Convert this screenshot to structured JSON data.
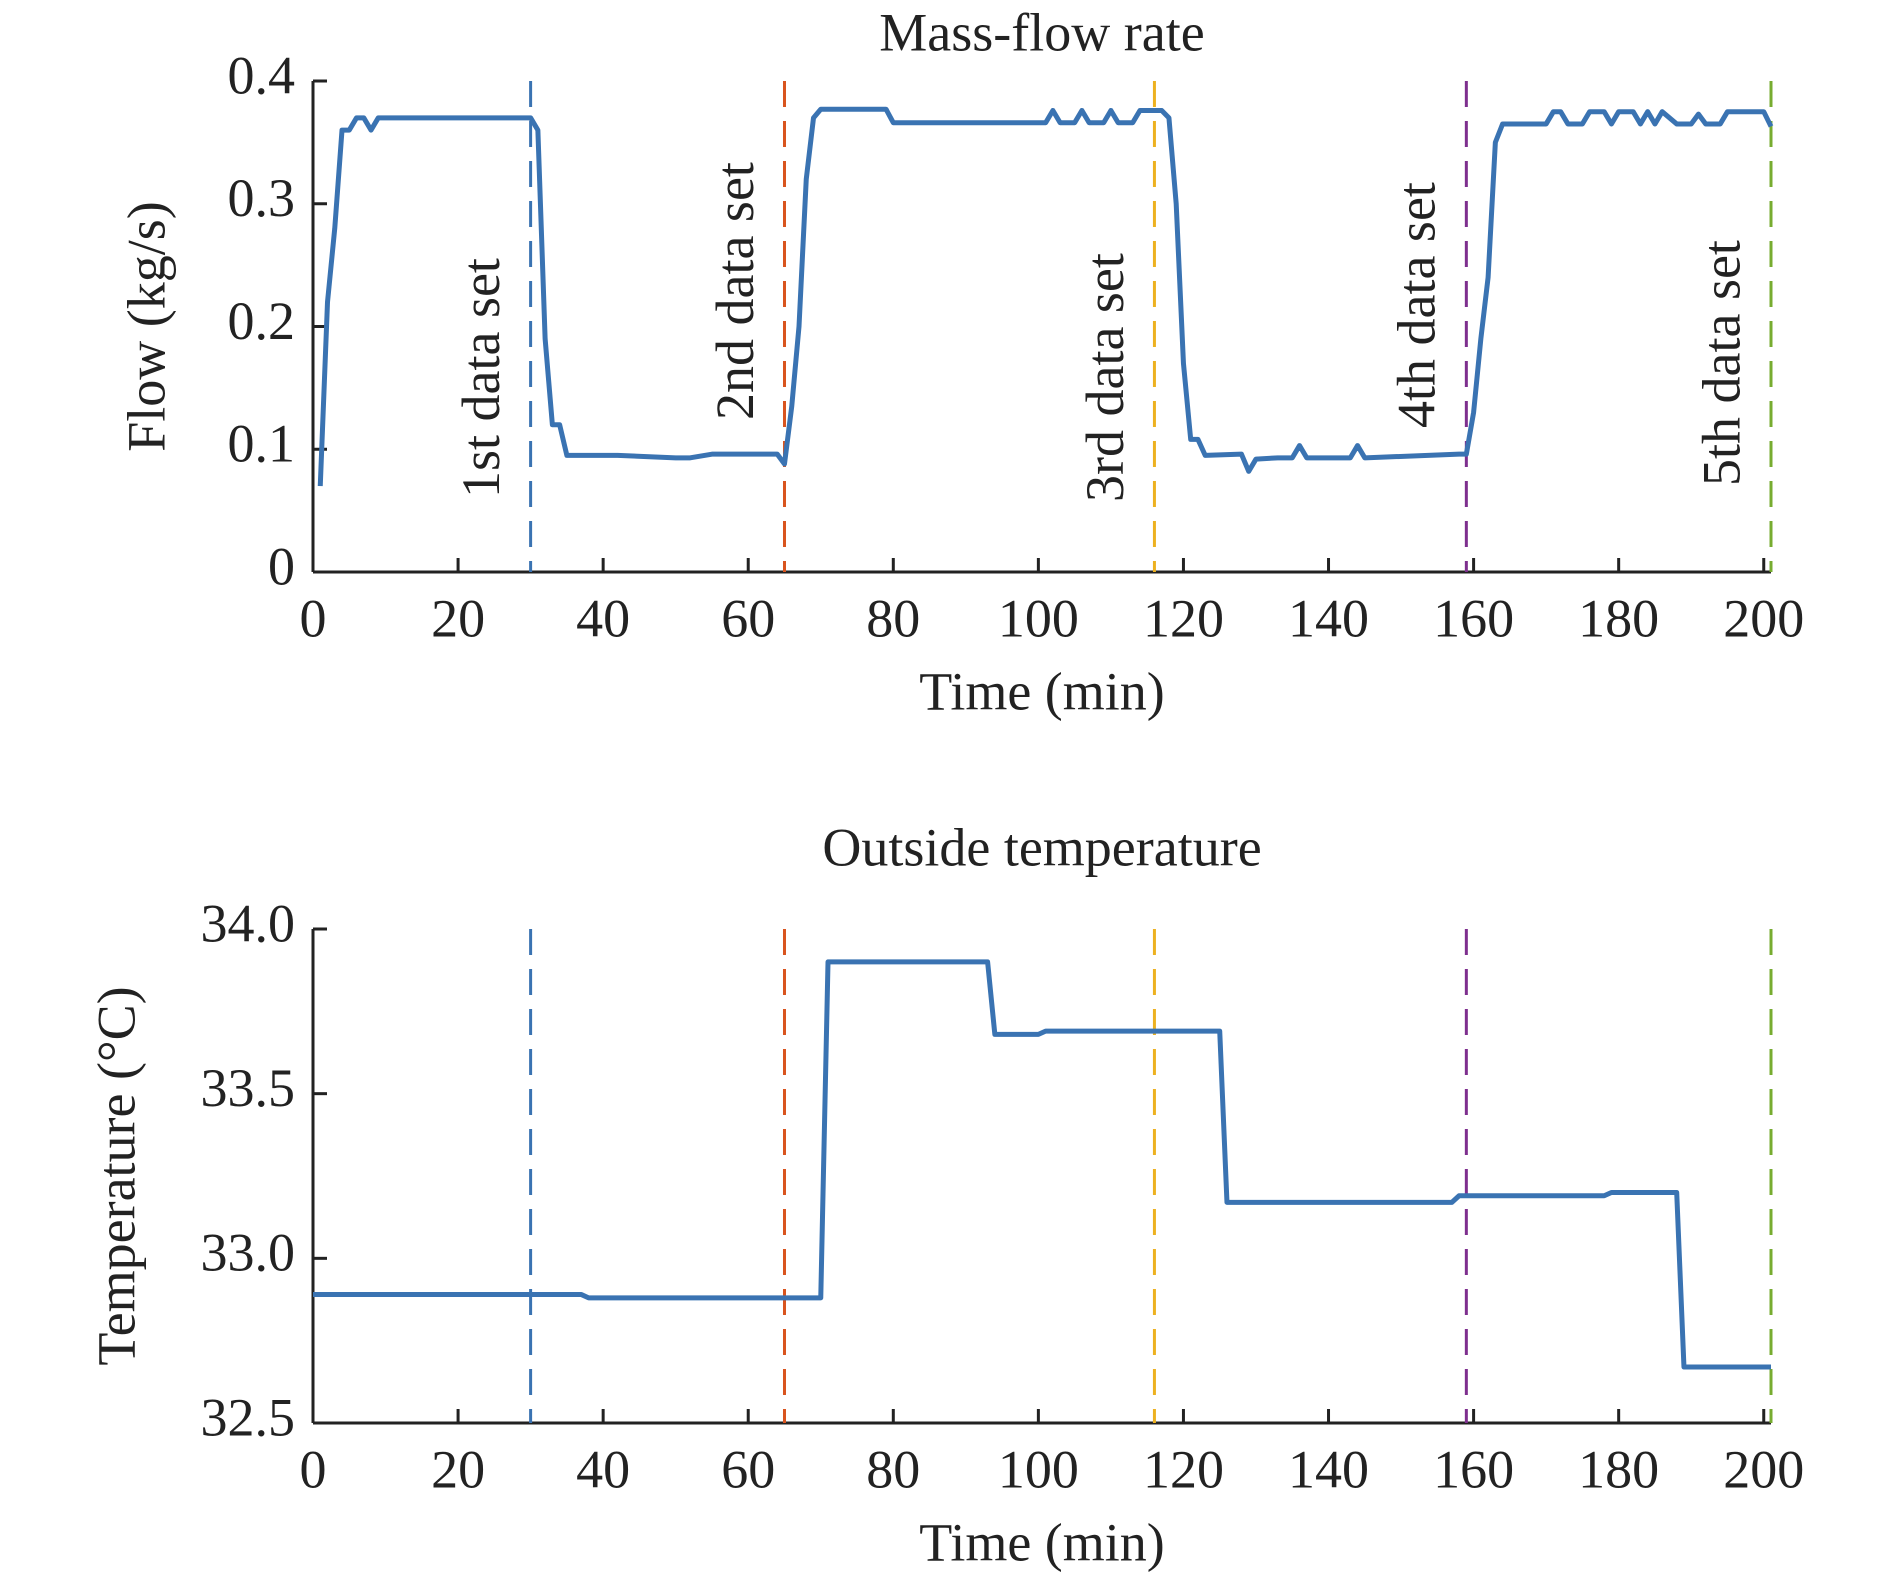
{
  "chart_data": [
    {
      "type": "line",
      "title": "Mass-flow rate",
      "xlabel": "Time (min)",
      "ylabel": "Flow (kg/s)",
      "xlim": [
        0,
        201
      ],
      "xticks": [
        0,
        20,
        40,
        60,
        80,
        100,
        120,
        140,
        160,
        180,
        200
      ],
      "ylim": [
        0,
        0.4
      ],
      "yticks": [
        0,
        0.1,
        0.2,
        0.3,
        0.4
      ],
      "x": [
        1,
        2,
        3,
        4,
        5,
        6,
        7,
        8,
        9,
        30,
        31,
        32,
        33,
        34,
        35,
        42,
        50,
        52,
        55,
        64,
        65,
        66,
        67,
        68,
        69,
        70,
        79,
        80,
        100,
        101,
        102,
        103,
        105,
        106,
        107,
        109,
        110,
        111,
        113,
        114,
        117,
        118,
        119,
        120,
        121,
        122,
        123,
        128,
        129,
        130,
        133,
        135,
        136,
        137,
        143,
        144,
        145,
        158,
        159,
        160,
        161,
        162,
        163,
        164,
        170,
        171,
        172,
        173,
        175,
        176,
        178,
        179,
        180,
        182,
        183,
        184,
        185,
        186,
        188,
        190,
        191,
        192,
        194,
        195,
        200,
        201
      ],
      "series": [
        {
          "color": "#3a73b2",
          "values": [
            0.07,
            0.22,
            0.28,
            0.36,
            0.36,
            0.37,
            0.37,
            0.36,
            0.37,
            0.37,
            0.36,
            0.19,
            0.12,
            0.12,
            0.095,
            0.095,
            0.093,
            0.093,
            0.096,
            0.096,
            0.088,
            0.135,
            0.2,
            0.32,
            0.37,
            0.377,
            0.377,
            0.366,
            0.366,
            0.366,
            0.376,
            0.366,
            0.366,
            0.376,
            0.366,
            0.366,
            0.376,
            0.366,
            0.366,
            0.376,
            0.376,
            0.37,
            0.3,
            0.17,
            0.108,
            0.108,
            0.095,
            0.096,
            0.082,
            0.092,
            0.093,
            0.093,
            0.103,
            0.093,
            0.093,
            0.103,
            0.093,
            0.096,
            0.096,
            0.13,
            0.19,
            0.24,
            0.35,
            0.365,
            0.365,
            0.375,
            0.375,
            0.365,
            0.365,
            0.375,
            0.375,
            0.365,
            0.375,
            0.375,
            0.365,
            0.375,
            0.365,
            0.375,
            0.365,
            0.365,
            0.373,
            0.365,
            0.365,
            0.375,
            0.375,
            0.363
          ]
        }
      ],
      "vlines": [
        {
          "x": 30,
          "color": "#3a73b2",
          "label": "1st data set"
        },
        {
          "x": 65,
          "color": "#d9541e",
          "label": "2nd data set"
        },
        {
          "x": 116,
          "color": "#edb120",
          "label": "3rd data set"
        },
        {
          "x": 159,
          "color": "#7e2f8e",
          "label": "4th data set"
        },
        {
          "x": 201,
          "color": "#77ac30",
          "label": "5th data set"
        }
      ]
    },
    {
      "type": "line",
      "title": "Outside temperature",
      "xlabel": "Time (min)",
      "ylabel": "Temperature (°C)",
      "xlim": [
        0,
        201
      ],
      "xticks": [
        0,
        20,
        40,
        60,
        80,
        100,
        120,
        140,
        160,
        180,
        200
      ],
      "ylim": [
        32.5,
        34
      ],
      "yticks": [
        32.5,
        {
          "value": 33,
          "label": "33.0"
        },
        33.5,
        {
          "value": 34,
          "label": "34.0"
        }
      ],
      "x": [
        0,
        37,
        38,
        70,
        71,
        93,
        94,
        100,
        101,
        125,
        126,
        157,
        158,
        178,
        179,
        188,
        189,
        201
      ],
      "series": [
        {
          "color": "#3a73b2",
          "values": [
            32.89,
            32.89,
            32.88,
            32.88,
            33.9,
            33.9,
            33.68,
            33.68,
            33.69,
            33.69,
            33.17,
            33.17,
            33.19,
            33.19,
            33.2,
            33.2,
            32.67,
            32.67
          ]
        }
      ],
      "vlines": [
        {
          "x": 30,
          "color": "#3a73b2"
        },
        {
          "x": 65,
          "color": "#d9541e"
        },
        {
          "x": 116,
          "color": "#edb120"
        },
        {
          "x": 159,
          "color": "#7e2f8e"
        },
        {
          "x": 201,
          "color": "#77ac30"
        }
      ]
    }
  ]
}
